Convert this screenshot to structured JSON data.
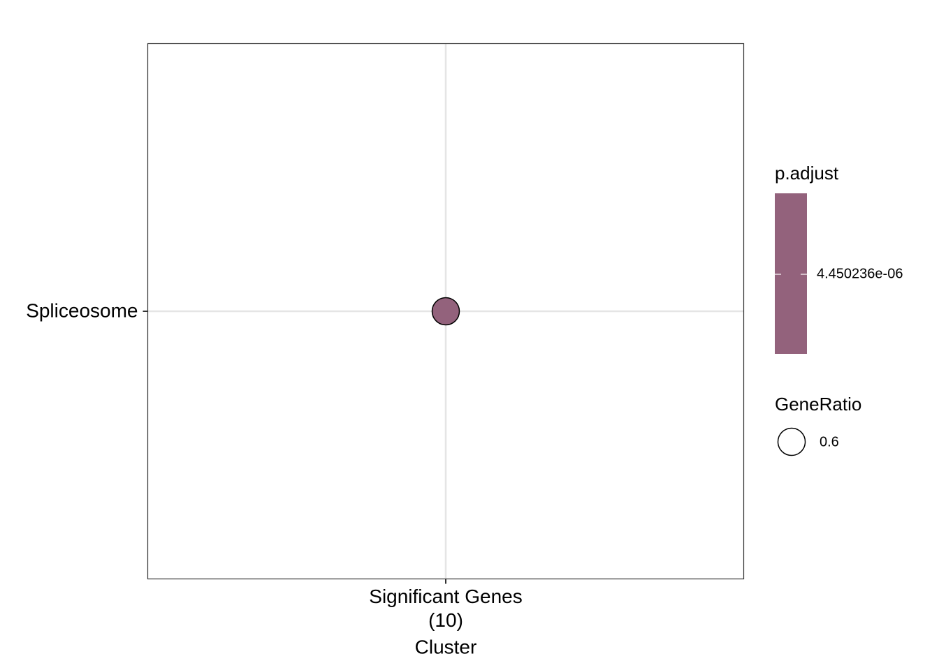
{
  "chart_data": {
    "type": "dot",
    "x": [
      "Significant Genes\n(10)"
    ],
    "y": [
      "Spliceosome"
    ],
    "xlabel": "Cluster",
    "size": [
      0.6
    ],
    "color_values": [
      4.450236e-06
    ],
    "color": "#93627c",
    "grid": true,
    "color_legend": {
      "title": "p.adjust",
      "ticks": [
        {
          "value": 4.450236e-06,
          "label": "4.450236e-06"
        }
      ]
    },
    "size_legend": {
      "title": "GeneRatio",
      "values": [
        0.6
      ]
    }
  }
}
